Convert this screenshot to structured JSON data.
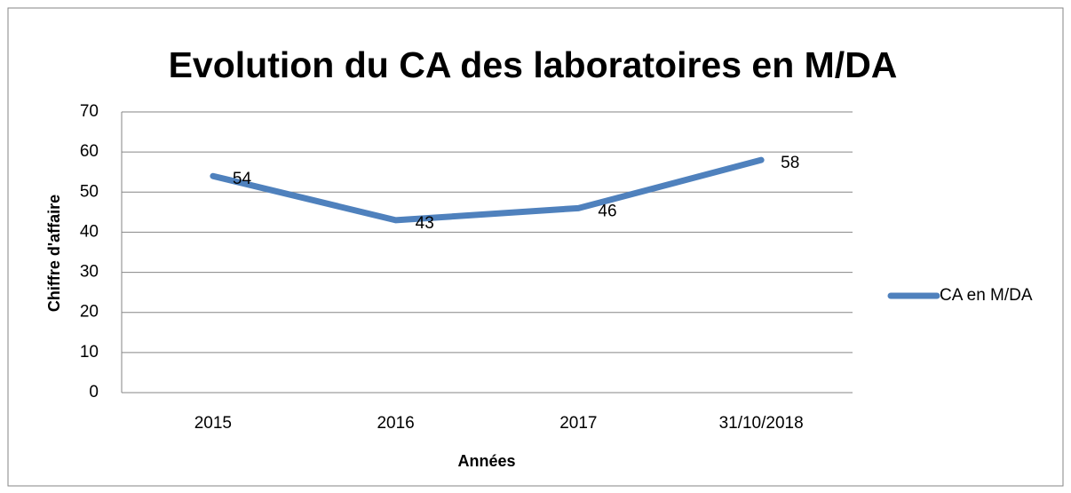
{
  "chart_data": {
    "type": "line",
    "title": "Evolution du CA des laboratoires en M/DA",
    "x_label": "Années",
    "y_label": "Chiffre d'affaire",
    "categories": [
      "2015",
      "2016",
      "2017",
      "31/10/2018"
    ],
    "series": [
      {
        "name": "CA en M/DA",
        "color": "#4f81bd",
        "values": [
          54,
          43,
          46,
          58
        ]
      }
    ],
    "ylim": [
      0,
      70
    ],
    "yticks": [
      0,
      10,
      20,
      30,
      40,
      50,
      60,
      70
    ],
    "grid": true,
    "legend": "right"
  }
}
